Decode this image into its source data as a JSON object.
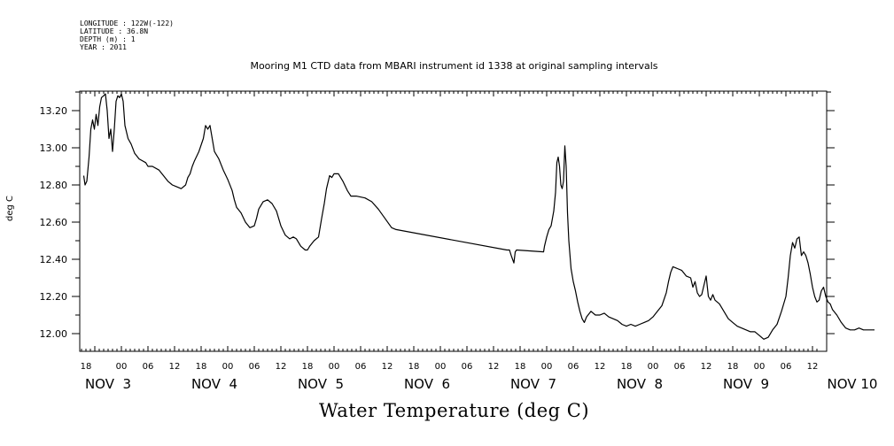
{
  "meta": {
    "longitude": "LONGITUDE : 122W(-122)",
    "latitude": "LATITUDE : 36.8N",
    "depth": "DEPTH (m) : 1",
    "year": "YEAR : 2011"
  },
  "chart_data": {
    "type": "line",
    "title": "Mooring M1 CTD data from MBARI instrument id 1338 at original sampling intervals",
    "xlabel": "Water Temperature (deg C)",
    "ylabel": "deg C",
    "xlim_hours": [
      -11,
      157
    ],
    "ylim": [
      11.9,
      13.3
    ],
    "yticks": [
      "12.00",
      "12.20",
      "12.40",
      "12.60",
      "12.80",
      "13.00",
      "13.20"
    ],
    "ytick_values": [
      12.0,
      12.2,
      12.4,
      12.6,
      12.8,
      13.0,
      13.2
    ],
    "hour_tick_labels": [
      {
        "h": -8,
        "label": "18"
      },
      {
        "h": 0,
        "label": "00"
      },
      {
        "h": 6,
        "label": "06"
      },
      {
        "h": 12,
        "label": "12"
      },
      {
        "h": 18,
        "label": "18"
      },
      {
        "h": 24,
        "label": "00"
      },
      {
        "h": 30,
        "label": "06"
      },
      {
        "h": 36,
        "label": "12"
      },
      {
        "h": 42,
        "label": "18"
      },
      {
        "h": 48,
        "label": "00"
      },
      {
        "h": 54,
        "label": "06"
      },
      {
        "h": 60,
        "label": "12"
      },
      {
        "h": 66,
        "label": "18"
      },
      {
        "h": 72,
        "label": "00"
      },
      {
        "h": 78,
        "label": "06"
      },
      {
        "h": 84,
        "label": "12"
      },
      {
        "h": 90,
        "label": "18"
      },
      {
        "h": 96,
        "label": "00"
      },
      {
        "h": 102,
        "label": "06"
      },
      {
        "h": 108,
        "label": "12"
      },
      {
        "h": 114,
        "label": "18"
      },
      {
        "h": 120,
        "label": "00"
      },
      {
        "h": 126,
        "label": "06"
      },
      {
        "h": 132,
        "label": "12"
      },
      {
        "h": 138,
        "label": "18"
      },
      {
        "h": 144,
        "label": "00"
      },
      {
        "h": 150,
        "label": "06"
      },
      {
        "h": 156,
        "label": "12"
      }
    ],
    "date_labels": [
      {
        "h": -3,
        "label": "NOV  3"
      },
      {
        "h": 21,
        "label": "NOV  4"
      },
      {
        "h": 45,
        "label": "NOV  5"
      },
      {
        "h": 69,
        "label": "NOV  6"
      },
      {
        "h": 93,
        "label": "NOV  7"
      },
      {
        "h": 117,
        "label": "NOV  8"
      },
      {
        "h": 141,
        "label": "NOV  9"
      },
      {
        "h": 165,
        "label": "NOV 10"
      }
    ],
    "series": [
      {
        "color": "#000000",
        "points": [
          [
            -8.5,
            12.85
          ],
          [
            -8.2,
            12.8
          ],
          [
            -7.8,
            12.82
          ],
          [
            -7.3,
            12.95
          ],
          [
            -6.9,
            13.1
          ],
          [
            -6.5,
            13.15
          ],
          [
            -6.1,
            13.1
          ],
          [
            -5.7,
            13.18
          ],
          [
            -5.3,
            13.12
          ],
          [
            -4.9,
            13.22
          ],
          [
            -4.5,
            13.27
          ],
          [
            -4.0,
            13.28
          ],
          [
            -3.6,
            13.29
          ],
          [
            -3.2,
            13.2
          ],
          [
            -2.8,
            13.05
          ],
          [
            -2.4,
            13.1
          ],
          [
            -2.0,
            12.98
          ],
          [
            -1.6,
            13.1
          ],
          [
            -1.2,
            13.25
          ],
          [
            -0.8,
            13.28
          ],
          [
            -0.4,
            13.27
          ],
          [
            0.0,
            13.29
          ],
          [
            0.4,
            13.25
          ],
          [
            0.8,
            13.12
          ],
          [
            1.5,
            13.05
          ],
          [
            2.2,
            13.02
          ],
          [
            3.0,
            12.97
          ],
          [
            4.0,
            12.94
          ],
          [
            5.5,
            12.92
          ],
          [
            6.0,
            12.9
          ],
          [
            7.0,
            12.9
          ],
          [
            8.5,
            12.88
          ],
          [
            9.5,
            12.85
          ],
          [
            10.5,
            12.82
          ],
          [
            11.5,
            12.8
          ],
          [
            12.5,
            12.79
          ],
          [
            13.5,
            12.78
          ],
          [
            14.5,
            12.8
          ],
          [
            15.0,
            12.84
          ],
          [
            15.5,
            12.86
          ],
          [
            16.0,
            12.9
          ],
          [
            16.5,
            12.93
          ],
          [
            17.5,
            12.98
          ],
          [
            18.5,
            13.05
          ],
          [
            19.0,
            13.12
          ],
          [
            19.5,
            13.1
          ],
          [
            20.0,
            13.12
          ],
          [
            20.5,
            13.05
          ],
          [
            21.0,
            12.98
          ],
          [
            22.0,
            12.94
          ],
          [
            23.0,
            12.88
          ],
          [
            24.0,
            12.83
          ],
          [
            25.0,
            12.77
          ],
          [
            25.5,
            12.72
          ],
          [
            26.0,
            12.68
          ],
          [
            27.0,
            12.65
          ],
          [
            28.0,
            12.6
          ],
          [
            29.0,
            12.57
          ],
          [
            30.0,
            12.58
          ],
          [
            30.5,
            12.62
          ],
          [
            31.0,
            12.67
          ],
          [
            32.0,
            12.71
          ],
          [
            33.0,
            12.72
          ],
          [
            34.0,
            12.7
          ],
          [
            35.0,
            12.66
          ],
          [
            36.0,
            12.58
          ],
          [
            37.0,
            12.53
          ],
          [
            38.0,
            12.51
          ],
          [
            38.8,
            12.52
          ],
          [
            39.5,
            12.51
          ],
          [
            40.5,
            12.47
          ],
          [
            41.5,
            12.45
          ],
          [
            42.0,
            12.45
          ],
          [
            42.5,
            12.47
          ],
          [
            43.5,
            12.5
          ],
          [
            44.5,
            12.52
          ],
          [
            45.2,
            12.62
          ],
          [
            45.8,
            12.7
          ],
          [
            46.3,
            12.78
          ],
          [
            47.0,
            12.85
          ],
          [
            47.5,
            12.84
          ],
          [
            48.0,
            12.86
          ],
          [
            49.0,
            12.86
          ],
          [
            50.0,
            12.82
          ],
          [
            51.0,
            12.77
          ],
          [
            51.8,
            12.74
          ],
          [
            53.0,
            12.74
          ],
          [
            55.0,
            12.73
          ],
          [
            56.5,
            12.71
          ],
          [
            58.0,
            12.67
          ],
          [
            59.5,
            12.62
          ],
          [
            61.0,
            12.57
          ],
          [
            62.0,
            12.56
          ],
          [
            87.0,
            12.45
          ],
          [
            87.6,
            12.45
          ],
          [
            88.0,
            12.42
          ],
          [
            88.3,
            12.4
          ],
          [
            88.6,
            12.38
          ],
          [
            88.9,
            12.44
          ],
          [
            89.2,
            12.45
          ],
          [
            95.3,
            12.44
          ],
          [
            95.5,
            12.47
          ],
          [
            96.0,
            12.52
          ],
          [
            96.5,
            12.56
          ],
          [
            97.0,
            12.58
          ],
          [
            97.6,
            12.66
          ],
          [
            98.0,
            12.76
          ],
          [
            98.3,
            12.92
          ],
          [
            98.6,
            12.95
          ],
          [
            98.9,
            12.9
          ],
          [
            99.2,
            12.8
          ],
          [
            99.5,
            12.78
          ],
          [
            99.8,
            12.82
          ],
          [
            100.1,
            13.01
          ],
          [
            100.4,
            12.9
          ],
          [
            100.7,
            12.65
          ],
          [
            101.0,
            12.5
          ],
          [
            101.5,
            12.35
          ],
          [
            102.0,
            12.28
          ],
          [
            102.5,
            12.23
          ],
          [
            103.0,
            12.17
          ],
          [
            103.5,
            12.12
          ],
          [
            104.0,
            12.08
          ],
          [
            104.5,
            12.06
          ],
          [
            105.0,
            12.09
          ],
          [
            106.0,
            12.12
          ],
          [
            107.0,
            12.1
          ],
          [
            108.0,
            12.1
          ],
          [
            109.0,
            12.11
          ],
          [
            110.0,
            12.09
          ],
          [
            111.0,
            12.08
          ],
          [
            112.0,
            12.07
          ],
          [
            113.0,
            12.05
          ],
          [
            114.0,
            12.04
          ],
          [
            115.0,
            12.05
          ],
          [
            116.0,
            12.04
          ],
          [
            117.0,
            12.05
          ],
          [
            118.0,
            12.06
          ],
          [
            119.0,
            12.07
          ],
          [
            120.0,
            12.09
          ],
          [
            121.0,
            12.12
          ],
          [
            122.0,
            12.15
          ],
          [
            123.0,
            12.22
          ],
          [
            123.5,
            12.28
          ],
          [
            124.0,
            12.33
          ],
          [
            124.5,
            12.36
          ],
          [
            125.5,
            12.35
          ],
          [
            126.5,
            12.34
          ],
          [
            127.5,
            12.31
          ],
          [
            128.5,
            12.3
          ],
          [
            129.0,
            12.25
          ],
          [
            129.5,
            12.28
          ],
          [
            130.0,
            12.22
          ],
          [
            130.5,
            12.2
          ],
          [
            131.0,
            12.21
          ],
          [
            131.5,
            12.26
          ],
          [
            132.0,
            12.31
          ],
          [
            132.5,
            12.2
          ],
          [
            133.0,
            12.18
          ],
          [
            133.5,
            12.21
          ],
          [
            134.0,
            12.18
          ],
          [
            134.5,
            12.17
          ],
          [
            135.0,
            12.16
          ],
          [
            136.0,
            12.12
          ],
          [
            137.0,
            12.08
          ],
          [
            138.0,
            12.06
          ],
          [
            139.0,
            12.04
          ],
          [
            140.0,
            12.03
          ],
          [
            141.0,
            12.02
          ],
          [
            142.0,
            12.01
          ],
          [
            143.0,
            12.01
          ],
          [
            144.0,
            11.99
          ],
          [
            145.0,
            11.97
          ],
          [
            146.0,
            11.98
          ],
          [
            147.0,
            12.02
          ],
          [
            148.0,
            12.05
          ],
          [
            149.0,
            12.12
          ],
          [
            150.0,
            12.2
          ],
          [
            150.5,
            12.3
          ],
          [
            151.0,
            12.42
          ],
          [
            151.5,
            12.49
          ],
          [
            152.0,
            12.46
          ],
          [
            152.5,
            12.51
          ],
          [
            153.0,
            12.52
          ],
          [
            153.5,
            12.42
          ],
          [
            154.0,
            12.44
          ],
          [
            154.5,
            12.42
          ],
          [
            155.0,
            12.38
          ],
          [
            155.5,
            12.32
          ],
          [
            156.0,
            12.25
          ],
          [
            156.5,
            12.2
          ],
          [
            157.0,
            12.17
          ],
          [
            157.5,
            12.18
          ],
          [
            158.0,
            12.23
          ],
          [
            158.5,
            12.25
          ],
          [
            159.0,
            12.2
          ],
          [
            159.5,
            12.17
          ],
          [
            160.0,
            12.16
          ],
          [
            160.5,
            12.13
          ],
          [
            161.5,
            12.1
          ],
          [
            162.5,
            12.06
          ],
          [
            163.5,
            12.03
          ],
          [
            164.5,
            12.02
          ],
          [
            165.5,
            12.02
          ],
          [
            166.5,
            12.03
          ],
          [
            167.5,
            12.02
          ],
          [
            168.5,
            12.02
          ],
          [
            169.5,
            12.02
          ],
          [
            170.0,
            12.02
          ]
        ]
      }
    ]
  }
}
